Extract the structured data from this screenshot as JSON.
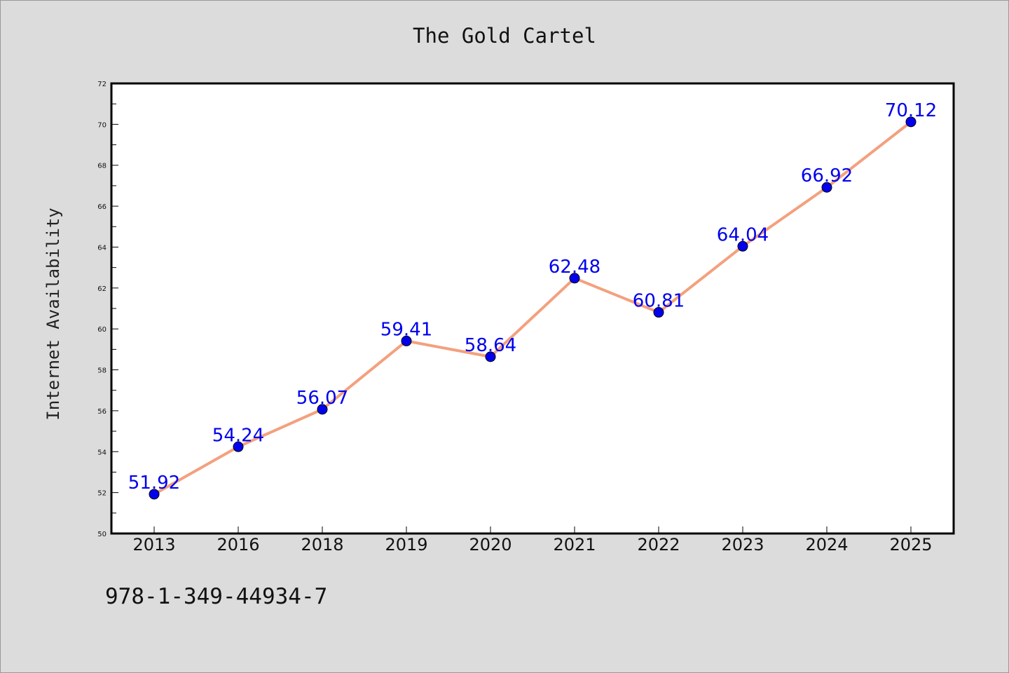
{
  "chart_data": {
    "type": "line",
    "title": "The Gold Cartel",
    "xlabel": "",
    "ylabel": "Internet Availability",
    "categories": [
      "2013",
      "2016",
      "2018",
      "2019",
      "2020",
      "2021",
      "2022",
      "2023",
      "2024",
      "2025"
    ],
    "series": [
      {
        "values": [
          51.92,
          54.24,
          56.07,
          59.41,
          58.64,
          62.48,
          60.81,
          64.04,
          66.92,
          70.12
        ],
        "labels": [
          "51.92",
          "54.24",
          "56.07",
          "59.41",
          "58.64",
          "62.48",
          "60.81",
          "64.04",
          "66.92",
          "70.12"
        ]
      }
    ],
    "ylim": [
      50,
      72
    ],
    "yticks": [
      "50",
      "52",
      "54",
      "56",
      "58",
      "60",
      "62",
      "64",
      "66",
      "68",
      "70",
      "72"
    ],
    "grid": false,
    "colors": {
      "line": "#f4a07e",
      "marker": "#0000ee",
      "label": "#0000ee",
      "background": "#dcdcdc",
      "plot_background": "#ffffff"
    }
  },
  "annotation": "978-1-349-44934-7"
}
